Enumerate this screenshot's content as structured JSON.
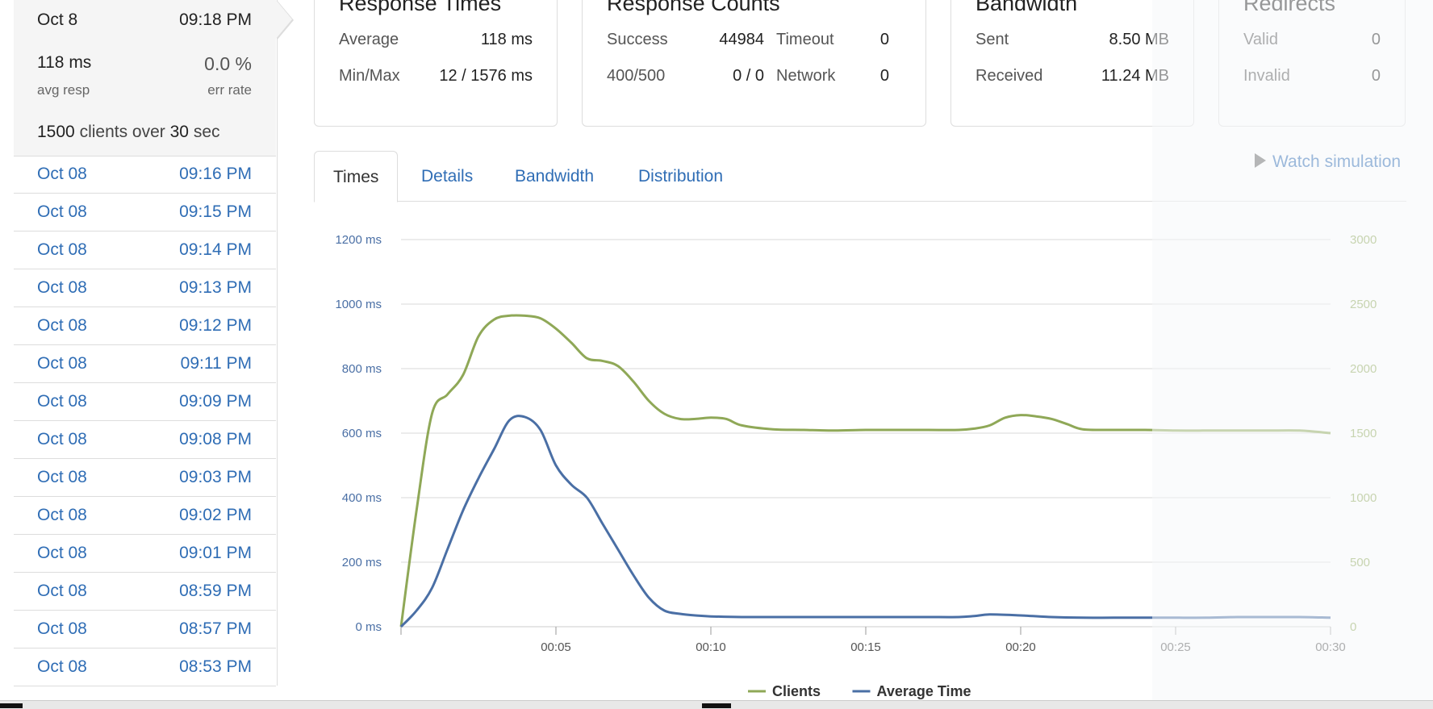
{
  "sidebar": {
    "current": {
      "date": "Oct 8",
      "time": "09:18 PM",
      "avg_resp_value": "118 ms",
      "avg_resp_label": "avg resp",
      "err_rate_value": "0.0 %",
      "err_rate_label": "err rate",
      "summary": {
        "clients": "1500",
        "text1": "clients over",
        "seconds": "30",
        "text2": "sec"
      }
    },
    "runs": [
      {
        "date": "Oct 08",
        "time": "09:16 PM"
      },
      {
        "date": "Oct 08",
        "time": "09:15 PM"
      },
      {
        "date": "Oct 08",
        "time": "09:14 PM"
      },
      {
        "date": "Oct 08",
        "time": "09:13 PM"
      },
      {
        "date": "Oct 08",
        "time": "09:12 PM"
      },
      {
        "date": "Oct 08",
        "time": "09:11 PM"
      },
      {
        "date": "Oct 08",
        "time": "09:09 PM"
      },
      {
        "date": "Oct 08",
        "time": "09:08 PM"
      },
      {
        "date": "Oct 08",
        "time": "09:03 PM"
      },
      {
        "date": "Oct 08",
        "time": "09:02 PM"
      },
      {
        "date": "Oct 08",
        "time": "09:01 PM"
      },
      {
        "date": "Oct 08",
        "time": "08:59 PM"
      },
      {
        "date": "Oct 08",
        "time": "08:57 PM"
      },
      {
        "date": "Oct 08",
        "time": "08:53 PM"
      }
    ]
  },
  "cards": {
    "response_times": {
      "title": "Response Times",
      "average_label": "Average",
      "average_value": "118 ms",
      "minmax_label": "Min/Max",
      "minmax_value": "12 / 1576 ms"
    },
    "response_counts": {
      "title": "Response Counts",
      "success_label": "Success",
      "success_value": "44984",
      "timeout_label": "Timeout",
      "timeout_value": "0",
      "errors_label": "400/500",
      "errors_value": "0 / 0",
      "network_label": "Network",
      "network_value": "0"
    },
    "bandwidth": {
      "title": "Bandwidth",
      "sent_label": "Sent",
      "sent_value": "8.50 MB",
      "received_label": "Received",
      "received_value": "11.24 MB"
    },
    "redirects": {
      "title": "Redirects",
      "valid_label": "Valid",
      "valid_value": "0",
      "invalid_label": "Invalid",
      "invalid_value": "0"
    }
  },
  "tabs": [
    {
      "label": "Times",
      "active": true
    },
    {
      "label": "Details",
      "active": false
    },
    {
      "label": "Bandwidth",
      "active": false
    },
    {
      "label": "Distribution",
      "active": false
    }
  ],
  "watch_simulation": "Watch simulation",
  "colors": {
    "clients": "#8fa857",
    "average_time": "#4a6fa5",
    "link": "#2f6db5"
  },
  "chart_data": {
    "type": "line",
    "x_ticks": [
      "00:05",
      "00:10",
      "00:15",
      "00:20",
      "00:25",
      "00:30"
    ],
    "y_left_ticks": [
      "0 ms",
      "200 ms",
      "400 ms",
      "600 ms",
      "800 ms",
      "1000 ms",
      "1200 ms"
    ],
    "y_right_ticks": [
      "0",
      "500",
      "1000",
      "1500",
      "2000",
      "2500",
      "3000"
    ],
    "ylim_left": [
      0,
      1200
    ],
    "ylim_right": [
      0,
      3000
    ],
    "xlim": [
      0,
      30
    ],
    "grid": true,
    "legend_position": "bottom",
    "series": [
      {
        "name": "Clients",
        "axis": "right",
        "color_key": "clients",
        "x": [
          0,
          0.5,
          1,
          1.5,
          2,
          2.5,
          3,
          3.5,
          4,
          4.5,
          5,
          5.5,
          6,
          6.5,
          7,
          7.5,
          8,
          8.5,
          9,
          9.5,
          10,
          10.5,
          11,
          12,
          13,
          14,
          15,
          16,
          17,
          18,
          18.5,
          19,
          19.5,
          20,
          20.5,
          21,
          21.5,
          22,
          23,
          24,
          25,
          26,
          27,
          28,
          29,
          30
        ],
        "values": [
          0,
          900,
          1650,
          1800,
          1950,
          2250,
          2380,
          2410,
          2410,
          2390,
          2310,
          2200,
          2080,
          2060,
          2020,
          1900,
          1750,
          1650,
          1610,
          1610,
          1620,
          1610,
          1560,
          1530,
          1525,
          1520,
          1525,
          1525,
          1525,
          1525,
          1535,
          1560,
          1620,
          1640,
          1630,
          1610,
          1570,
          1530,
          1525,
          1525,
          1520,
          1520,
          1520,
          1520,
          1520,
          1500
        ]
      },
      {
        "name": "Average Time",
        "axis": "left",
        "color_key": "average_time",
        "x": [
          0,
          0.5,
          1,
          1.5,
          2,
          2.5,
          3,
          3.5,
          4,
          4.5,
          5,
          5.5,
          6,
          6.5,
          7,
          7.5,
          8,
          8.5,
          9,
          9.5,
          10,
          11,
          12,
          13,
          14,
          15,
          16,
          17,
          18,
          18.5,
          19,
          20,
          21,
          22,
          23,
          24,
          25,
          26,
          27,
          28,
          29,
          30
        ],
        "values": [
          0,
          50,
          120,
          240,
          360,
          460,
          550,
          640,
          650,
          610,
          500,
          440,
          400,
          320,
          240,
          160,
          90,
          50,
          40,
          35,
          32,
          30,
          30,
          30,
          30,
          30,
          30,
          30,
          30,
          33,
          38,
          35,
          30,
          28,
          28,
          28,
          28,
          28,
          30,
          30,
          30,
          28
        ]
      }
    ]
  }
}
